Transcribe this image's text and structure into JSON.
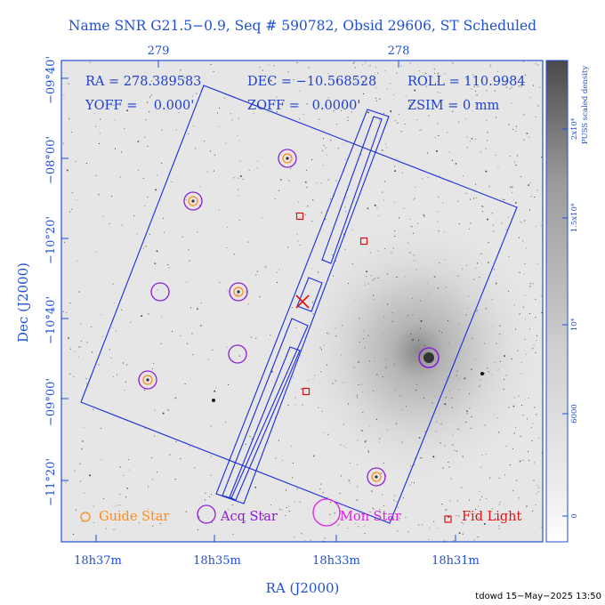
{
  "header": {
    "title": "Name SNR G21.5−0.9, Seq # 590782, Obsid 29606, ST Scheduled",
    "top_ticks": [
      "279",
      "278"
    ]
  },
  "info": {
    "ra": "RA = 278.389583",
    "dec": "DEC = −10.568528",
    "roll": "ROLL = 110.9984",
    "yoff": "YOFF =    0.000'",
    "zoff": "ZOFF =   0.0000'",
    "zsim": "ZSIM = 0 mm"
  },
  "axes": {
    "xlabel": "RA (J2000)",
    "ylabel": "Dec (J2000)",
    "x_ticks": [
      "18h37m",
      "18h35m",
      "18h33m",
      "18h31m"
    ],
    "y_ticks": [
      "−09°40'",
      "−08°00'",
      "−10°20'",
      "−10°40'",
      "−09°00'",
      "−11°20'"
    ]
  },
  "colorbar": {
    "title": "PUSS scaled density",
    "ticks": [
      "2x10⁴",
      "1.5x10⁴",
      "10⁴",
      "6000",
      "0"
    ]
  },
  "legend": {
    "guide": "Guide Star",
    "acq": "Acq Star",
    "mon": "Mon Star",
    "fid": "Fid Light"
  },
  "colors": {
    "axis": "#1f4fd6",
    "guide": "#ff8c1a",
    "acq": "#8a1cd6",
    "mon": "#e020e0",
    "fid": "#e01010",
    "footprint": "#1a2bdc"
  },
  "stars": {
    "guide_acq": [
      [
        323,
        178
      ],
      [
        217,
        226
      ],
      [
        268,
        328
      ],
      [
        166,
        427
      ],
      [
        423,
        536
      ]
    ],
    "acq_only": [
      [
        180,
        328
      ],
      [
        267,
        398
      ]
    ],
    "mon": [
      [
        482,
        402
      ]
    ]
  },
  "fid_lights": [
    [
      337,
      243
    ],
    [
      409,
      271
    ],
    [
      344,
      440
    ]
  ],
  "footer": "tdowd 15−May−2025 13:50"
}
